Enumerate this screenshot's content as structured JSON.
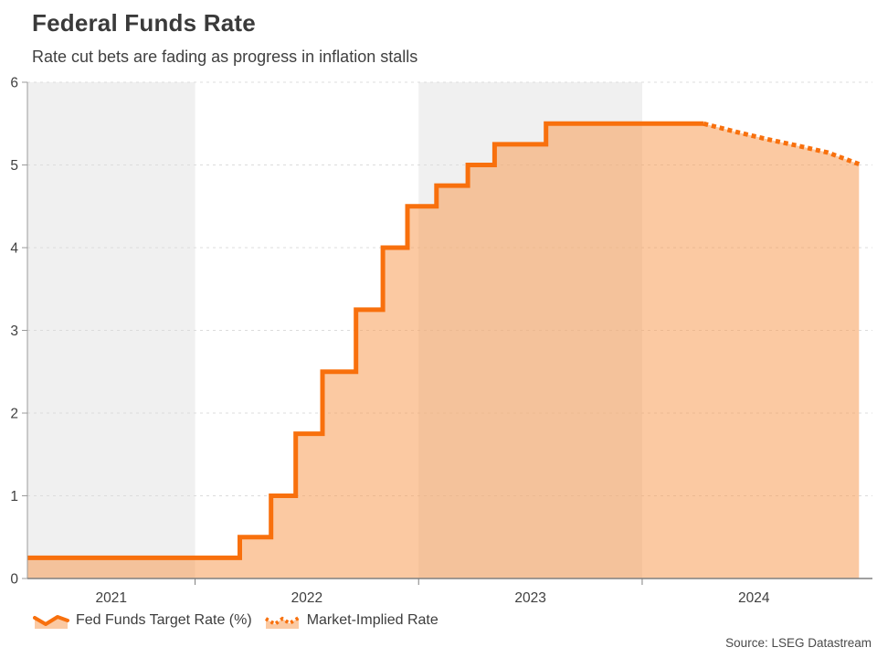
{
  "header": {
    "title": "Federal Funds Rate",
    "subtitle": "Rate cut bets are fading as progress in inflation stalls"
  },
  "source": "Source: LSEG Datastream",
  "colors": {
    "line_orange": "#f8700d",
    "area_fill_base": "#f89d56",
    "area_fill_rgba": "rgba(248,157,86,0.55)",
    "year_band_gray": "#f0f0f0",
    "gridline": "#dcdcdc",
    "y_axis_line": "#9b9b9b",
    "x_axis_line": "#808080",
    "tick_text": "#3f3f3f"
  },
  "legend": [
    {
      "label": "Fed Funds Target Rate (%)",
      "style": "solid"
    },
    {
      "label": "Market-Implied Rate",
      "style": "dotted"
    }
  ],
  "chart_data": {
    "type": "area",
    "title": "Federal Funds Rate",
    "xlabel": "",
    "ylabel": "",
    "grid": "dashed-horizontal",
    "legend_position": "bottom-left",
    "x_axis": {
      "min": 2021.25,
      "max": 2025.03,
      "tick_positions": [
        2022,
        2023,
        2024
      ],
      "labels": [
        "2021",
        "2022",
        "2023",
        "2024"
      ],
      "label_positions": [
        2021.625,
        2022.5,
        2023.5,
        2024.5
      ]
    },
    "y_axis": {
      "min": 0,
      "max": 6,
      "tick_values": [
        6,
        5,
        4,
        3,
        2,
        1,
        0
      ],
      "tick_labels": [
        "6",
        "5",
        "4",
        "3",
        "2",
        "1",
        "0"
      ]
    },
    "shaded_year_bands": [
      [
        2021.25,
        2022.0
      ],
      [
        2023.0,
        2024.0
      ]
    ],
    "series": [
      {
        "name": "Fed Funds Target Rate (%)",
        "type": "step-line",
        "line_style": "solid",
        "color": "#f8700d",
        "steps": [
          {
            "t": 2021.25,
            "rate": 0.25
          },
          {
            "t": 2022.2,
            "rate": 0.5
          },
          {
            "t": 2022.34,
            "rate": 1.0
          },
          {
            "t": 2022.45,
            "rate": 1.75
          },
          {
            "t": 2022.57,
            "rate": 2.5
          },
          {
            "t": 2022.72,
            "rate": 3.25
          },
          {
            "t": 2022.84,
            "rate": 4.0
          },
          {
            "t": 2022.95,
            "rate": 4.5
          },
          {
            "t": 2023.08,
            "rate": 4.75
          },
          {
            "t": 2023.22,
            "rate": 5.0
          },
          {
            "t": 2023.34,
            "rate": 5.25
          },
          {
            "t": 2023.57,
            "rate": 5.5
          }
        ],
        "end_t": 2024.275
      },
      {
        "name": "Market-Implied Rate",
        "type": "line",
        "line_style": "dotted",
        "color": "#f8700d",
        "points": [
          [
            2024.275,
            5.5
          ],
          [
            2024.42,
            5.4
          ],
          [
            2024.56,
            5.31
          ],
          [
            2024.7,
            5.23
          ],
          [
            2024.83,
            5.15
          ],
          [
            2024.97,
            5.01
          ]
        ]
      }
    ]
  }
}
